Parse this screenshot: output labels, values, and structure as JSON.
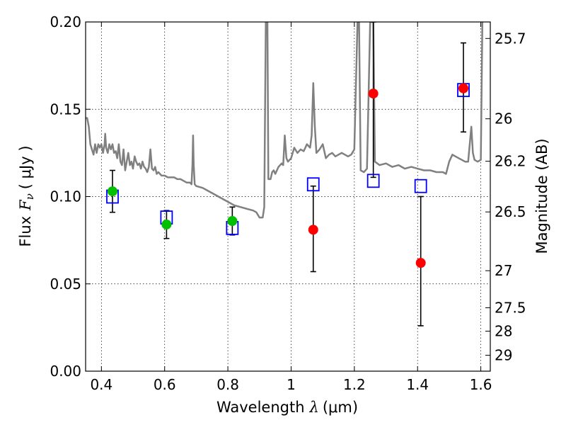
{
  "chart_data": {
    "type": "scatter",
    "xlabel": "Wavelength",
    "xlabel_symbol": "λ",
    "xlabel_unit": "(μm)",
    "ylabel": "Flux",
    "ylabel_symbol": "F",
    "ylabel_symbol_sub": "ν",
    "ylabel_unit": "( μJy )",
    "y2label": "Magnitude (AB)",
    "xlim": [
      0.35,
      1.63
    ],
    "ylim": [
      0.0,
      0.2
    ],
    "grid": true,
    "x_ticks": [
      {
        "value": 0.4,
        "label": "0.4"
      },
      {
        "value": 0.6,
        "label": "0.6"
      },
      {
        "value": 0.8,
        "label": "0.8"
      },
      {
        "value": 1.0,
        "label": "1"
      },
      {
        "value": 1.2,
        "label": "1.2"
      },
      {
        "value": 1.4,
        "label": "1.4"
      },
      {
        "value": 1.6,
        "label": "1.6"
      }
    ],
    "y_ticks": [
      {
        "value": 0.0,
        "label": "0.00"
      },
      {
        "value": 0.05,
        "label": "0.05"
      },
      {
        "value": 0.1,
        "label": "0.10"
      },
      {
        "value": 0.15,
        "label": "0.15"
      },
      {
        "value": 0.2,
        "label": "0.20"
      }
    ],
    "y2_ticks": [
      {
        "value": 25.7,
        "label": "25.7"
      },
      {
        "value": 26.0,
        "label": "26"
      },
      {
        "value": 26.2,
        "label": "26.2"
      },
      {
        "value": 26.5,
        "label": "26.5"
      },
      {
        "value": 27.0,
        "label": "27"
      },
      {
        "value": 27.5,
        "label": "27.5"
      },
      {
        "value": 28.0,
        "label": "28"
      },
      {
        "value": 29.0,
        "label": "29"
      }
    ],
    "magnitude_zeropoint": 23.9,
    "series": [
      {
        "kind": "model_spectrum",
        "color": "#808080",
        "points": [
          [
            0.35,
            0.145
          ],
          [
            0.355,
            0.145
          ],
          [
            0.36,
            0.14
          ],
          [
            0.365,
            0.13
          ],
          [
            0.37,
            0.127
          ],
          [
            0.375,
            0.124
          ],
          [
            0.38,
            0.13
          ],
          [
            0.385,
            0.125
          ],
          [
            0.39,
            0.13
          ],
          [
            0.395,
            0.128
          ],
          [
            0.4,
            0.13
          ],
          [
            0.405,
            0.125
          ],
          [
            0.41,
            0.13
          ],
          [
            0.412,
            0.136
          ],
          [
            0.415,
            0.128
          ],
          [
            0.42,
            0.125
          ],
          [
            0.425,
            0.13
          ],
          [
            0.43,
            0.127
          ],
          [
            0.435,
            0.13
          ],
          [
            0.44,
            0.125
          ],
          [
            0.445,
            0.126
          ],
          [
            0.45,
            0.122
          ],
          [
            0.455,
            0.13
          ],
          [
            0.46,
            0.12
          ],
          [
            0.465,
            0.118
          ],
          [
            0.47,
            0.127
          ],
          [
            0.475,
            0.115
          ],
          [
            0.48,
            0.12
          ],
          [
            0.485,
            0.125
          ],
          [
            0.49,
            0.118
          ],
          [
            0.495,
            0.12
          ],
          [
            0.5,
            0.116
          ],
          [
            0.505,
            0.123
          ],
          [
            0.51,
            0.12
          ],
          [
            0.515,
            0.118
          ],
          [
            0.52,
            0.119
          ],
          [
            0.525,
            0.116
          ],
          [
            0.53,
            0.12
          ],
          [
            0.535,
            0.117
          ],
          [
            0.54,
            0.116
          ],
          [
            0.545,
            0.114
          ],
          [
            0.55,
            0.117
          ],
          [
            0.555,
            0.127
          ],
          [
            0.56,
            0.116
          ],
          [
            0.565,
            0.115
          ],
          [
            0.57,
            0.117
          ],
          [
            0.575,
            0.113
          ],
          [
            0.58,
            0.114
          ],
          [
            0.59,
            0.112
          ],
          [
            0.6,
            0.112
          ],
          [
            0.61,
            0.111
          ],
          [
            0.62,
            0.111
          ],
          [
            0.63,
            0.111
          ],
          [
            0.64,
            0.11
          ],
          [
            0.65,
            0.11
          ],
          [
            0.66,
            0.109
          ],
          [
            0.67,
            0.108
          ],
          [
            0.68,
            0.108
          ],
          [
            0.685,
            0.107
          ],
          [
            0.688,
            0.118
          ],
          [
            0.69,
            0.135
          ],
          [
            0.692,
            0.118
          ],
          [
            0.695,
            0.107
          ],
          [
            0.7,
            0.106
          ],
          [
            0.72,
            0.105
          ],
          [
            0.74,
            0.103
          ],
          [
            0.76,
            0.101
          ],
          [
            0.78,
            0.099
          ],
          [
            0.8,
            0.097
          ],
          [
            0.82,
            0.095
          ],
          [
            0.84,
            0.094
          ],
          [
            0.86,
            0.093
          ],
          [
            0.88,
            0.092
          ],
          [
            0.89,
            0.091
          ],
          [
            0.9,
            0.088
          ],
          [
            0.91,
            0.088
          ],
          [
            0.915,
            0.094
          ],
          [
            0.92,
            0.2
          ],
          [
            0.925,
            0.2
          ],
          [
            0.928,
            0.11
          ],
          [
            0.935,
            0.11
          ],
          [
            0.94,
            0.114
          ],
          [
            0.945,
            0.115
          ],
          [
            0.95,
            0.113
          ],
          [
            0.96,
            0.117
          ],
          [
            0.97,
            0.119
          ],
          [
            0.975,
            0.118
          ],
          [
            0.98,
            0.135
          ],
          [
            0.985,
            0.122
          ],
          [
            0.99,
            0.12
          ],
          [
            1.0,
            0.122
          ],
          [
            1.01,
            0.128
          ],
          [
            1.02,
            0.125
          ],
          [
            1.03,
            0.127
          ],
          [
            1.04,
            0.126
          ],
          [
            1.05,
            0.13
          ],
          [
            1.06,
            0.128
          ],
          [
            1.065,
            0.135
          ],
          [
            1.07,
            0.165
          ],
          [
            1.075,
            0.14
          ],
          [
            1.08,
            0.125
          ],
          [
            1.09,
            0.127
          ],
          [
            1.1,
            0.13
          ],
          [
            1.11,
            0.122
          ],
          [
            1.12,
            0.124
          ],
          [
            1.13,
            0.125
          ],
          [
            1.14,
            0.123
          ],
          [
            1.15,
            0.124
          ],
          [
            1.16,
            0.125
          ],
          [
            1.17,
            0.124
          ],
          [
            1.18,
            0.123
          ],
          [
            1.19,
            0.124
          ],
          [
            1.2,
            0.127
          ],
          [
            1.21,
            0.2
          ],
          [
            1.215,
            0.2
          ],
          [
            1.22,
            0.115
          ],
          [
            1.23,
            0.114
          ],
          [
            1.24,
            0.116
          ],
          [
            1.25,
            0.2
          ],
          [
            1.26,
            0.2
          ],
          [
            1.265,
            0.12
          ],
          [
            1.28,
            0.118
          ],
          [
            1.3,
            0.119
          ],
          [
            1.32,
            0.117
          ],
          [
            1.34,
            0.118
          ],
          [
            1.36,
            0.116
          ],
          [
            1.38,
            0.117
          ],
          [
            1.4,
            0.116
          ],
          [
            1.42,
            0.115
          ],
          [
            1.44,
            0.115
          ],
          [
            1.46,
            0.114
          ],
          [
            1.48,
            0.114
          ],
          [
            1.49,
            0.113
          ],
          [
            1.5,
            0.12
          ],
          [
            1.51,
            0.124
          ],
          [
            1.52,
            0.123
          ],
          [
            1.53,
            0.122
          ],
          [
            1.54,
            0.121
          ],
          [
            1.55,
            0.12
          ],
          [
            1.56,
            0.12
          ],
          [
            1.57,
            0.14
          ],
          [
            1.575,
            0.125
          ],
          [
            1.58,
            0.121
          ],
          [
            1.59,
            0.12
          ],
          [
            1.6,
            0.121
          ],
          [
            1.605,
            0.2
          ]
        ]
      },
      {
        "kind": "observed_green",
        "color": "#00c000",
        "points": [
          {
            "x": 0.435,
            "y": 0.103,
            "yerr_low": 0.091,
            "yerr_high": 0.115
          },
          {
            "x": 0.606,
            "y": 0.084,
            "yerr_low": 0.076,
            "yerr_high": 0.092
          },
          {
            "x": 0.814,
            "y": 0.086,
            "yerr_low": 0.078,
            "yerr_high": 0.094
          }
        ]
      },
      {
        "kind": "observed_red",
        "color": "#ff0000",
        "points": [
          {
            "x": 1.07,
            "y": 0.081,
            "yerr_low": 0.057,
            "yerr_high": 0.106
          },
          {
            "x": 1.26,
            "y": 0.159,
            "yerr_low": 0.111,
            "yerr_high": 0.2
          },
          {
            "x": 1.41,
            "y": 0.062,
            "yerr_low": 0.026,
            "yerr_high": 0.1
          },
          {
            "x": 1.545,
            "y": 0.162,
            "yerr_low": 0.137,
            "yerr_high": 0.188
          }
        ]
      },
      {
        "kind": "model_synthetic_photometry",
        "color": "#0000ff",
        "points": [
          {
            "x": 0.435,
            "y": 0.1
          },
          {
            "x": 0.606,
            "y": 0.088
          },
          {
            "x": 0.814,
            "y": 0.082
          },
          {
            "x": 1.07,
            "y": 0.107
          },
          {
            "x": 1.26,
            "y": 0.109
          },
          {
            "x": 1.41,
            "y": 0.106
          },
          {
            "x": 1.545,
            "y": 0.161
          }
        ]
      }
    ]
  }
}
